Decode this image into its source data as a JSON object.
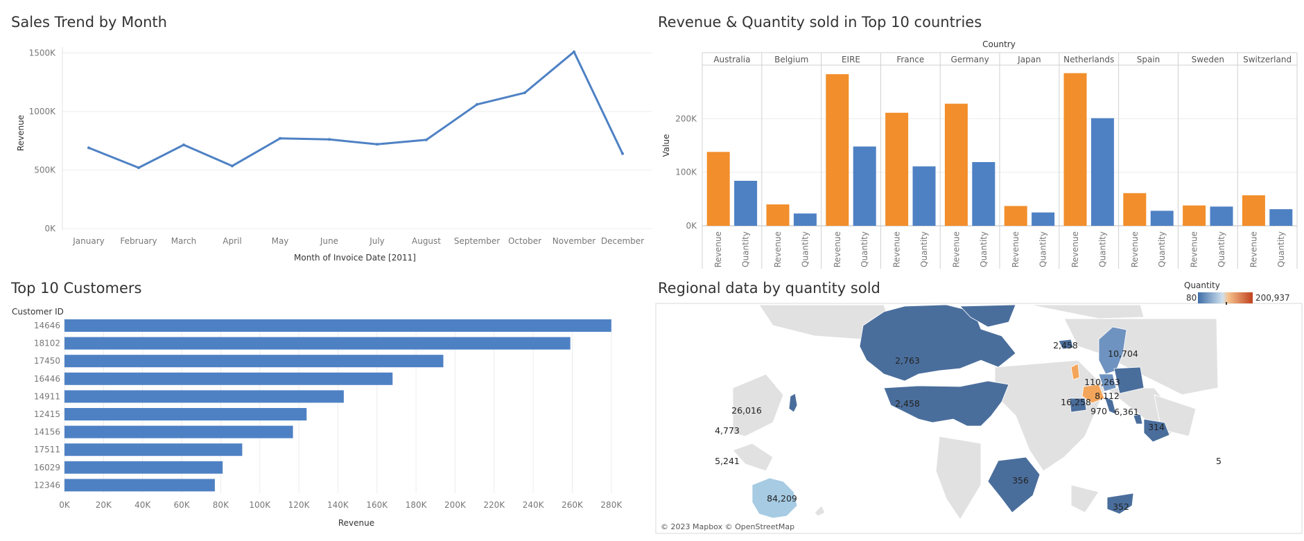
{
  "panels": {
    "sales_trend_title": "Sales Trend by Month",
    "rev_qty_title": "Revenue & Quantity sold in Top 10 countries",
    "top_customers_title": "Top 10 Customers",
    "regional_title": "Regional data by quantity sold"
  },
  "chart_data": [
    {
      "type": "line",
      "title": "Sales Trend by Month",
      "xlabel": "Month of Invoice Date [2011]",
      "ylabel": "Revenue",
      "categories": [
        "January",
        "February",
        "March",
        "April",
        "May",
        "June",
        "July",
        "August",
        "September",
        "October",
        "November",
        "December"
      ],
      "values": [
        690000,
        520000,
        715000,
        535000,
        770000,
        762000,
        720000,
        758000,
        1060000,
        1160000,
        1510000,
        640000
      ],
      "ylim": [
        0,
        1550000
      ],
      "yticks": [
        0,
        500000,
        1000000,
        1500000
      ],
      "ytick_labels": [
        "0K",
        "500K",
        "1000K",
        "1500K"
      ],
      "color": "#4e81c4",
      "grid": true
    },
    {
      "type": "bar",
      "title": "Revenue & Quantity sold in Top 10 countries",
      "column_header": "Country",
      "ylabel": "Value",
      "categories": [
        "Australia",
        "Belgium",
        "EIRE",
        "France",
        "Germany",
        "Japan",
        "Netherlands",
        "Spain",
        "Sweden",
        "Switzerland"
      ],
      "measures": [
        "Revenue",
        "Quantity"
      ],
      "series": [
        {
          "name": "Revenue",
          "color": "#f28e2b",
          "values": [
            138000,
            40000,
            283000,
            211000,
            228000,
            37000,
            285000,
            61000,
            38000,
            57000
          ]
        },
        {
          "name": "Quantity",
          "color": "#4e81c4",
          "values": [
            84000,
            23000,
            148000,
            111000,
            119000,
            25000,
            201000,
            28000,
            36000,
            31000
          ]
        }
      ],
      "ylim": [
        0,
        300000
      ],
      "yticks": [
        0,
        100000,
        200000
      ],
      "ytick_labels": [
        "0K",
        "100K",
        "200K"
      ]
    },
    {
      "type": "bar",
      "orientation": "horizontal",
      "title": "Top 10 Customers",
      "column_header": "Customer ID",
      "xlabel": "Revenue",
      "categories": [
        "14646",
        "18102",
        "17450",
        "16446",
        "14911",
        "12415",
        "14156",
        "17511",
        "16029",
        "12346"
      ],
      "values": [
        280000,
        259000,
        194000,
        168000,
        143000,
        124000,
        117000,
        91000,
        81000,
        77000
      ],
      "xlim": [
        0,
        290000
      ],
      "xticks": [
        0,
        20000,
        40000,
        60000,
        80000,
        100000,
        120000,
        140000,
        160000,
        180000,
        200000,
        220000,
        240000,
        260000,
        280000
      ],
      "xtick_labels": [
        "0K",
        "20K",
        "40K",
        "60K",
        "80K",
        "100K",
        "120K",
        "140K",
        "160K",
        "180K",
        "200K",
        "220K",
        "240K",
        "260K",
        "280K"
      ],
      "color": "#4e81c4"
    }
  ],
  "map": {
    "legend_title": "Quantity",
    "legend_min": "80",
    "legend_max": "200,937",
    "attribution": "© 2023 Mapbox © OpenStreetMap",
    "labels": [
      "2,763",
      "2,458",
      "26,016",
      "4,773",
      "5,241",
      "84,209",
      "356",
      "2,458",
      "10,704",
      "110,263",
      "8,112",
      "16,258",
      "970",
      "6,361",
      "314",
      "352",
      "5"
    ],
    "colors": {
      "dark": "#4a6e9c",
      "mid": "#6f93c0",
      "light": "#a6cbe3",
      "orange": "#f3a55b",
      "land": "#e1e1e1",
      "water": "#ffffff"
    }
  }
}
